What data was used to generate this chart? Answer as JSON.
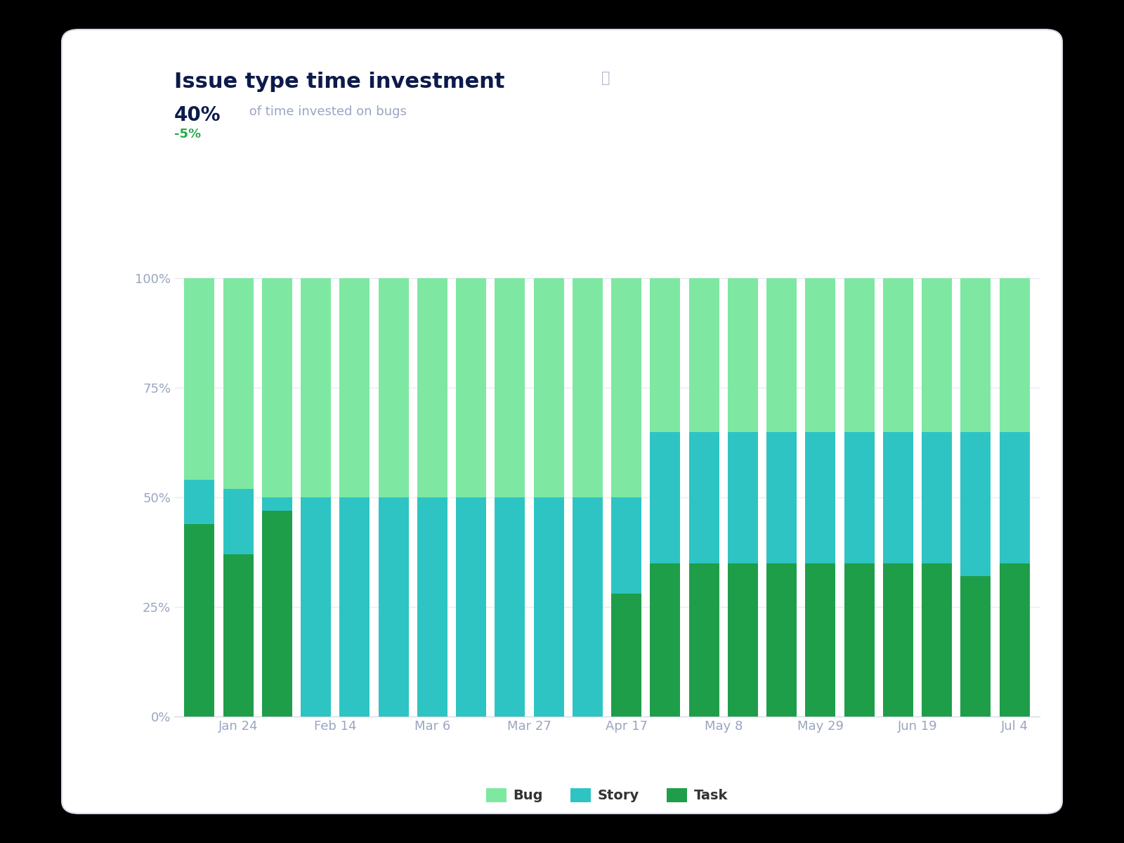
{
  "title": "Issue type time investment",
  "subtitle_big": "40%",
  "subtitle_text": " of time invested on bugs",
  "subtitle_delta": "-5%",
  "x_tick_labels": [
    "Jan 24",
    "Feb 14",
    "Mar 6",
    "Mar 27",
    "Apr 17",
    "May 8",
    "May 29",
    "Jun 19",
    "Jul 4"
  ],
  "tick_positions": [
    1.0,
    3.5,
    6.0,
    8.5,
    11.0,
    13.5,
    16.0,
    18.5,
    21.0
  ],
  "n_bars": 22,
  "task_vals": [
    44,
    37,
    47,
    0,
    0,
    0,
    0,
    0,
    0,
    0,
    0,
    28,
    35,
    35,
    35,
    35,
    35,
    35,
    35,
    35,
    32,
    35
  ],
  "story_vals": [
    10,
    15,
    3,
    50,
    50,
    50,
    50,
    50,
    50,
    50,
    50,
    22,
    30,
    30,
    30,
    30,
    30,
    30,
    30,
    30,
    33,
    30
  ],
  "bug_vals": [
    46,
    48,
    50,
    50,
    50,
    50,
    50,
    50,
    50,
    50,
    50,
    50,
    35,
    35,
    35,
    35,
    35,
    35,
    35,
    35,
    35,
    35
  ],
  "colors": {
    "bug": "#7ee8a2",
    "story": "#2ec4c4",
    "task": "#1f9e4a"
  },
  "title_color": "#0d1b4b",
  "subtitle_gray": "#9aa5c0",
  "subtitle_delta_color": "#27a84b",
  "grid_color": "#e8ecf2",
  "axis_tick_color": "#9aa5c0",
  "card_bg": "#ffffff",
  "card_edge": "#d8dde8",
  "outer_bg": "#000000",
  "bar_width": 0.78,
  "ylim": [
    0,
    102
  ],
  "yticks": [
    0,
    25,
    50,
    75,
    100
  ],
  "ytick_labels": [
    "0%",
    "25%",
    "50%",
    "75%",
    "100%"
  ],
  "title_fontsize": 22,
  "subtitle_big_fontsize": 20,
  "subtitle_text_fontsize": 13,
  "delta_fontsize": 13,
  "axis_fontsize": 13,
  "legend_fontsize": 14
}
